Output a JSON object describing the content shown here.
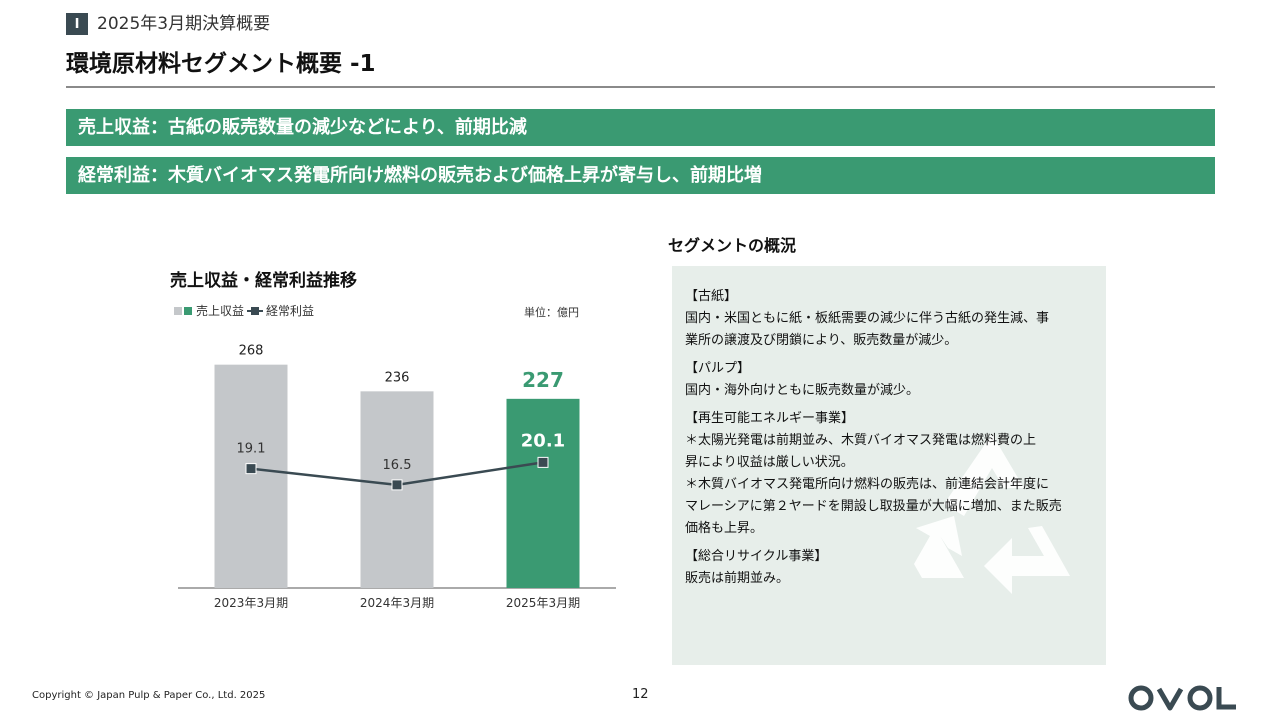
{
  "header": {
    "section_number": "Ⅰ",
    "section_title": "2025年3月期決算概要",
    "page_title": "環境原材料セグメント概要 -1"
  },
  "banners": [
    {
      "text": "売上収益：古紙の販売数量の減少などにより、前期比減"
    },
    {
      "text": "経常利益：木質バイオマス発電所向け燃料の販売および価格上昇が寄与し、前期比増"
    }
  ],
  "chart": {
    "title": "売上収益・経常利益推移",
    "legend": [
      "売上収益",
      "経常利益"
    ],
    "unit": "単位：億円"
  },
  "chart_data": {
    "type": "bar",
    "title": "売上収益・経常利益推移",
    "categories": [
      "2023年3月期",
      "2024年3月期",
      "2025年3月期"
    ],
    "series": [
      {
        "name": "売上収益",
        "type": "bar",
        "values": [
          268,
          236,
          227
        ],
        "colors": [
          "#c4c7ca",
          "#c4c7ca",
          "#3a9a72"
        ]
      },
      {
        "name": "経常利益",
        "type": "line",
        "values": [
          19.1,
          16.5,
          20.1
        ],
        "color": "#3a4a52"
      }
    ],
    "unit": "単位：億円",
    "highlight_category": "2025年3月期",
    "ylim_bar": [
      0,
      300
    ],
    "ylim_line": [
      0,
      40
    ]
  },
  "overview": {
    "title": "セグメントの概況",
    "sections": [
      {
        "heading": "【古紙】",
        "lines": [
          "国内・米国ともに紙・板紙需要の減少に伴う古紙の発生減、事",
          "業所の譲渡及び閉鎖により、販売数量が減少。"
        ]
      },
      {
        "heading": "【パルプ】",
        "lines": [
          "国内・海外向けともに販売数量が減少。"
        ]
      },
      {
        "heading": "【再生可能エネルギー事業】",
        "lines": [
          "＊太陽光発電は前期並み、木質バイオマス発電は燃料費の上",
          "昇により収益は厳しい状況。",
          "＊木質バイオマス発電所向け燃料の販売は、前連結会計年度に",
          "マレーシアに第２ヤードを開設し取扱量が大幅に増加、また販売",
          "価格も上昇。"
        ]
      },
      {
        "heading": "【総合リサイクル事業】",
        "lines": [
          "販売は前期並み。"
        ]
      }
    ]
  },
  "footer": {
    "copyright": "Copyright © Japan Pulp & Paper Co., Ltd. 2025",
    "page_number": "12",
    "logo": "OVOL"
  },
  "colors": {
    "accent": "#3a9a72",
    "bar_gray": "#c4c7ca",
    "line": "#3a4a52",
    "panel_bg": "#e7eeea"
  }
}
